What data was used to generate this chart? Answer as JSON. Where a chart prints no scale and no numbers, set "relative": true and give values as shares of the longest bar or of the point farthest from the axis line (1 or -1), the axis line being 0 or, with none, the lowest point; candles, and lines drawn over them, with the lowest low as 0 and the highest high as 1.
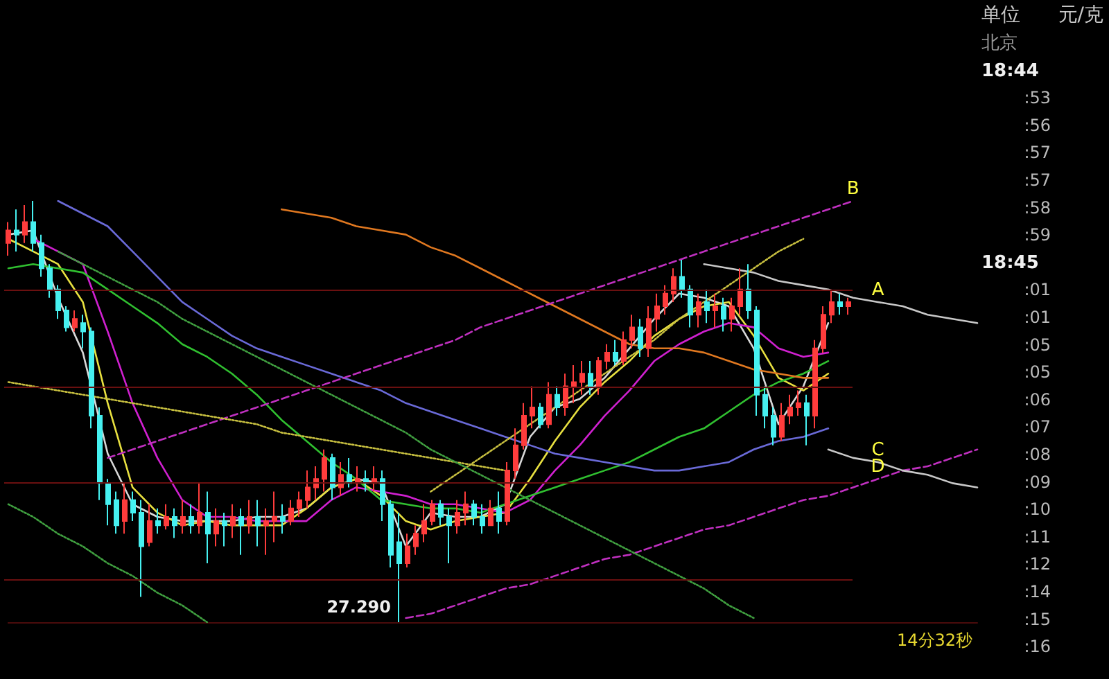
{
  "chart_data": [
    {
      "type": "candlestick",
      "relative": true,
      "ref_lines": [
        {
          "axis": "y",
          "value": 0.79,
          "color": "#6a1010"
        },
        {
          "axis": "y",
          "value": 0.56,
          "color": "#6a1010"
        },
        {
          "axis": "y",
          "value": 0.33,
          "color": "#6a1010"
        },
        {
          "axis": "y",
          "value": 0.1,
          "color": "#6a1010"
        }
      ],
      "categories": [
        null,
        null,
        null,
        null,
        null,
        null,
        null,
        null,
        null,
        null,
        null,
        null,
        null,
        null,
        null,
        null,
        null,
        null,
        null,
        null,
        null,
        null,
        null,
        null,
        null,
        null,
        null,
        null,
        null,
        null,
        null,
        null,
        null,
        null,
        null,
        null,
        null,
        null,
        null,
        null,
        null,
        null,
        null,
        null,
        null,
        null,
        null,
        null,
        null,
        null,
        null,
        null,
        null,
        null,
        null,
        null,
        null,
        null,
        null,
        null,
        null,
        null,
        null,
        null,
        null,
        null,
        null,
        null,
        null,
        null,
        null,
        null,
        null,
        null,
        null,
        null,
        null,
        null,
        null,
        null,
        null,
        null,
        null,
        null,
        null,
        null,
        null,
        null,
        null,
        null,
        null,
        null,
        null,
        null,
        null,
        null,
        null,
        null,
        null,
        null,
        null,
        null
      ],
      "annotations": [
        "14分32秒",
        "27.290",
        "单位",
        "元/克",
        "北京",
        "18:44",
        ":53",
        ":56",
        ":57",
        ":57",
        ":58",
        ":59",
        "18:45",
        ":01",
        ":01",
        ":05",
        ":05",
        ":06",
        ":07",
        ":08",
        ":09",
        ":10",
        ":11",
        ":12",
        ":14",
        ":15",
        ":16"
      ],
      "ohlc": [
        [
          0.9,
          0.95,
          0.87,
          0.93
        ],
        [
          0.93,
          0.98,
          0.88,
          0.92
        ],
        [
          0.92,
          0.99,
          0.9,
          0.95
        ],
        [
          0.95,
          1,
          0.88,
          0.9
        ],
        [
          0.9,
          0.92,
          0.82,
          0.84
        ],
        [
          0.84,
          0.85,
          0.77,
          0.79
        ],
        [
          0.79,
          0.8,
          0.72,
          0.74
        ],
        [
          0.74,
          0.75,
          0.69,
          0.7
        ],
        [
          0.7,
          0.74,
          0.69,
          0.72
        ],
        [
          0.71,
          0.73,
          0.65,
          0.69
        ],
        [
          0.69,
          0.7,
          0.46,
          0.49
        ],
        [
          0.49,
          0.51,
          0.29,
          0.33
        ],
        [
          0.33,
          0.34,
          0.23,
          0.28
        ],
        [
          0.29,
          0.31,
          0.21,
          0.23
        ],
        [
          0.24,
          0.33,
          0.21,
          0.29
        ],
        [
          0.29,
          0.31,
          0.24,
          0.26
        ],
        [
          0.26,
          0.29,
          0.06,
          0.18
        ],
        [
          0.19,
          0.28,
          0.18,
          0.24
        ],
        [
          0.24,
          0.27,
          0.21,
          0.23
        ],
        [
          0.23,
          0.28,
          0.22,
          0.25
        ],
        [
          0.25,
          0.27,
          0.2,
          0.23
        ],
        [
          0.23,
          0.29,
          0.21,
          0.25
        ],
        [
          0.25,
          0.28,
          0.21,
          0.23
        ],
        [
          0.23,
          0.33,
          0.21,
          0.26
        ],
        [
          0.26,
          0.31,
          0.14,
          0.21
        ],
        [
          0.21,
          0.27,
          0.18,
          0.24
        ],
        [
          0.24,
          0.26,
          0.18,
          0.23
        ],
        [
          0.23,
          0.28,
          0.2,
          0.25
        ],
        [
          0.25,
          0.27,
          0.16,
          0.23
        ],
        [
          0.23,
          0.29,
          0.21,
          0.25
        ],
        [
          0.25,
          0.29,
          0.18,
          0.23
        ],
        [
          0.23,
          0.27,
          0.16,
          0.24
        ],
        [
          0.24,
          0.31,
          0.19,
          0.25
        ],
        [
          0.25,
          0.28,
          0.21,
          0.24
        ],
        [
          0.24,
          0.29,
          0.23,
          0.27
        ],
        [
          0.27,
          0.31,
          0.25,
          0.29
        ],
        [
          0.29,
          0.36,
          0.27,
          0.32
        ],
        [
          0.32,
          0.37,
          0.29,
          0.34
        ],
        [
          0.34,
          0.41,
          0.31,
          0.39
        ],
        [
          0.39,
          0.4,
          0.29,
          0.32
        ],
        [
          0.32,
          0.38,
          0.3,
          0.35
        ],
        [
          0.35,
          0.39,
          0.32,
          0.33
        ],
        [
          0.33,
          0.37,
          0.31,
          0.34
        ],
        [
          0.34,
          0.36,
          0.31,
          0.33
        ],
        [
          0.33,
          0.37,
          0.31,
          0.34
        ],
        [
          0.34,
          0.36,
          0.24,
          0.28
        ],
        [
          0.28,
          0.29,
          0.13,
          0.16
        ],
        [
          0.19,
          0.26,
          0,
          0.14
        ],
        [
          0.14,
          0.21,
          0.13,
          0.18
        ],
        [
          0.18,
          0.23,
          0.16,
          0.21
        ],
        [
          0.21,
          0.28,
          0.19,
          0.24
        ],
        [
          0.24,
          0.29,
          0.23,
          0.28
        ],
        [
          0.28,
          0.29,
          0.23,
          0.25
        ],
        [
          0.25,
          0.27,
          0.14,
          0.23
        ],
        [
          0.23,
          0.29,
          0.21,
          0.26
        ],
        [
          0.26,
          0.31,
          0.23,
          0.28
        ],
        [
          0.28,
          0.29,
          0.23,
          0.25
        ],
        [
          0.25,
          0.28,
          0.21,
          0.23
        ],
        [
          0.23,
          0.29,
          0.23,
          0.27
        ],
        [
          0.27,
          0.31,
          0.21,
          0.24
        ],
        [
          0.24,
          0.38,
          0.23,
          0.36
        ],
        [
          0.36,
          0.46,
          0.34,
          0.42
        ],
        [
          0.42,
          0.52,
          0.41,
          0.49
        ],
        [
          0.49,
          0.56,
          0.46,
          0.51
        ],
        [
          0.51,
          0.52,
          0.46,
          0.47
        ],
        [
          0.47,
          0.57,
          0.46,
          0.54
        ],
        [
          0.54,
          0.56,
          0.49,
          0.51
        ],
        [
          0.51,
          0.59,
          0.49,
          0.56
        ],
        [
          0.56,
          0.61,
          0.52,
          0.57
        ],
        [
          0.57,
          0.62,
          0.54,
          0.59
        ],
        [
          0.59,
          0.62,
          0.54,
          0.56
        ],
        [
          0.56,
          0.63,
          0.54,
          0.62
        ],
        [
          0.62,
          0.66,
          0.6,
          0.64
        ],
        [
          0.64,
          0.67,
          0.61,
          0.62
        ],
        [
          0.62,
          0.69,
          0.61,
          0.67
        ],
        [
          0.67,
          0.73,
          0.65,
          0.7
        ],
        [
          0.7,
          0.72,
          0.63,
          0.65
        ],
        [
          0.65,
          0.75,
          0.63,
          0.72
        ],
        [
          0.72,
          0.78,
          0.69,
          0.75
        ],
        [
          0.75,
          0.8,
          0.73,
          0.78
        ],
        [
          0.78,
          0.84,
          0.76,
          0.82
        ],
        [
          0.82,
          0.86,
          0.77,
          0.79
        ],
        [
          0.79,
          0.8,
          0.7,
          0.73
        ],
        [
          0.73,
          0.78,
          0.7,
          0.76
        ],
        [
          0.76,
          0.79,
          0.71,
          0.74
        ],
        [
          0.74,
          0.78,
          0.7,
          0.75
        ],
        [
          0.75,
          0.77,
          0.69,
          0.72
        ],
        [
          0.72,
          0.77,
          0.69,
          0.75
        ],
        [
          0.75,
          0.84,
          0.73,
          0.79
        ],
        [
          0.79,
          0.85,
          0.72,
          0.74
        ],
        [
          0.74,
          0.75,
          0.49,
          0.54
        ],
        [
          0.54,
          0.56,
          0.46,
          0.49
        ],
        [
          0.49,
          0.51,
          0.42,
          0.44
        ],
        [
          0.44,
          0.52,
          0.43,
          0.49
        ],
        [
          0.49,
          0.54,
          0.47,
          0.51
        ],
        [
          0.51,
          0.55,
          0.49,
          0.52
        ],
        [
          0.52,
          0.54,
          0.42,
          0.49
        ],
        [
          0.49,
          0.67,
          0.46,
          0.65
        ],
        [
          0.65,
          0.75,
          0.64,
          0.73
        ],
        [
          0.73,
          0.79,
          0.71,
          0.76
        ],
        [
          0.76,
          0.78,
          0.73,
          0.75
        ],
        [
          0.75,
          0.77,
          0.73,
          0.76
        ]
      ]
    },
    {
      "type": "line",
      "relative": true,
      "categories": [
        null,
        null,
        null,
        null,
        null,
        null,
        null,
        null,
        null,
        null,
        null,
        null,
        null,
        null,
        null,
        null,
        null,
        null,
        null,
        null,
        null,
        null,
        null,
        null,
        null,
        null,
        null,
        null,
        null,
        null,
        null,
        null,
        null,
        null
      ],
      "series": [
        {
          "color": "#d8d8d8",
          "values": [
            0.92,
            0.93,
            0.77,
            0.64,
            0.4,
            0.28,
            0.25,
            0.24,
            0.24,
            0.24,
            0.25,
            0.25,
            0.27,
            0.32,
            0.34,
            0.33,
            0.18,
            0.26,
            0.25,
            0.25,
            0.28,
            0.44,
            0.51,
            0.53,
            0.58,
            0.65,
            0.72,
            0.78,
            0.77,
            0.75,
            0.65,
            0.47,
            0.56,
            0.71
          ]
        },
        {
          "color": "#e8e040",
          "values": [
            0.91,
            0.88,
            0.85,
            0.76,
            0.52,
            0.32,
            0.26,
            0.23,
            0.24,
            0.23,
            0.23,
            0.23,
            0.27,
            0.32,
            0.34,
            0.3,
            0.24,
            0.22,
            0.24,
            0.25,
            0.26,
            0.34,
            0.43,
            0.51,
            0.57,
            0.62,
            0.68,
            0.72,
            0.75,
            0.76,
            0.68,
            0.58,
            0.55,
            0.59
          ]
        },
        {
          "color": "#d020d0",
          "values": [
            null,
            0.91,
            0.88,
            0.85,
            0.69,
            0.52,
            0.39,
            0.29,
            0.25,
            0.25,
            0.24,
            0.24,
            0.24,
            0.29,
            0.32,
            0.31,
            0.3,
            0.28,
            0.28,
            0.27,
            0.26,
            0.29,
            0.36,
            0.42,
            0.49,
            0.55,
            0.62,
            0.66,
            0.69,
            0.71,
            0.7,
            0.65,
            0.63,
            0.64
          ]
        },
        {
          "color": "#30c030",
          "values": [
            0.84,
            0.85,
            0.84,
            0.83,
            0.79,
            0.75,
            0.71,
            0.66,
            0.63,
            0.59,
            0.54,
            0.48,
            0.43,
            0.38,
            0.34,
            0.29,
            0.28,
            0.27,
            0.27,
            0.26,
            0.28,
            0.3,
            0.32,
            0.34,
            0.36,
            0.38,
            0.41,
            0.44,
            0.46,
            0.5,
            0.54,
            0.57,
            0.59,
            0.62
          ]
        },
        {
          "color": "#6a6ad8",
          "values": [
            null,
            null,
            1,
            0.97,
            0.94,
            0.88,
            0.82,
            0.76,
            0.72,
            0.68,
            0.65,
            0.63,
            0.61,
            0.59,
            0.57,
            0.55,
            0.52,
            0.5,
            0.48,
            0.46,
            0.44,
            0.42,
            0.4,
            0.39,
            0.38,
            0.37,
            0.36,
            0.36,
            0.37,
            0.38,
            0.41,
            0.43,
            0.44,
            0.46
          ]
        },
        {
          "color": "#e07820",
          "values": [
            null,
            null,
            null,
            null,
            null,
            null,
            null,
            null,
            null,
            null,
            null,
            0.98,
            0.97,
            0.96,
            0.94,
            0.93,
            0.92,
            0.89,
            0.87,
            0.84,
            0.81,
            0.78,
            0.75,
            0.72,
            0.69,
            0.66,
            0.65,
            0.65,
            0.64,
            0.62,
            0.6,
            0.59,
            0.58,
            0.58
          ]
        }
      ]
    },
    {
      "type": "line",
      "relative": true,
      "categories": [
        null,
        null,
        null,
        null,
        null,
        null,
        null,
        null,
        null,
        null,
        null,
        null,
        null,
        null,
        null,
        null,
        null,
        null,
        null,
        null,
        null,
        null,
        null,
        null,
        null,
        null,
        null,
        null,
        null,
        null,
        null,
        null,
        null,
        null,
        null,
        null,
        null,
        null,
        null,
        null
      ],
      "series": [
        {
          "name": "B",
          "color": "#c030c0",
          "line_style": "dashed",
          "values": [
            null,
            null,
            null,
            null,
            0.39,
            0.41,
            0.43,
            0.45,
            0.47,
            0.49,
            0.51,
            0.53,
            0.55,
            0.57,
            0.59,
            0.61,
            0.63,
            0.65,
            0.67,
            0.7,
            0.72,
            0.74,
            0.76,
            0.78,
            0.8,
            0.82,
            0.84,
            0.86,
            0.88,
            0.9,
            0.92,
            0.94,
            0.96,
            0.98,
            1,
            null,
            null,
            null,
            null,
            null
          ]
        },
        {
          "name": "D",
          "color": "#c030c0",
          "line_style": "dashed",
          "values": [
            null,
            null,
            null,
            null,
            null,
            null,
            null,
            null,
            null,
            null,
            null,
            null,
            null,
            null,
            null,
            null,
            0.01,
            0.02,
            0.04,
            0.06,
            0.08,
            0.09,
            0.11,
            0.13,
            0.15,
            0.16,
            0.18,
            0.2,
            0.22,
            0.23,
            0.25,
            0.27,
            0.29,
            0.3,
            0.32,
            0.34,
            0.36,
            0.37,
            0.39,
            0.41
          ]
        },
        {
          "name": "A",
          "color": "#c8c8c8",
          "values": [
            null,
            null,
            null,
            null,
            null,
            null,
            null,
            null,
            null,
            null,
            null,
            null,
            null,
            null,
            null,
            null,
            null,
            null,
            null,
            null,
            null,
            null,
            null,
            null,
            null,
            null,
            null,
            null,
            0.85,
            0.84,
            0.83,
            0.81,
            0.8,
            0.79,
            0.77,
            0.76,
            0.75,
            0.73,
            0.72,
            0.71
          ]
        },
        {
          "name": "C",
          "color": "#c8c8c8",
          "values": [
            null,
            null,
            null,
            null,
            null,
            null,
            null,
            null,
            null,
            null,
            null,
            null,
            null,
            null,
            null,
            null,
            null,
            null,
            null,
            null,
            null,
            null,
            null,
            null,
            null,
            null,
            null,
            null,
            null,
            null,
            null,
            null,
            null,
            0.41,
            0.39,
            0.38,
            0.36,
            0.35,
            0.33,
            0.32
          ]
        },
        {
          "color": "#c8c040",
          "line_style": "dotted",
          "values": [
            null,
            null,
            null,
            null,
            null,
            null,
            null,
            null,
            null,
            null,
            null,
            null,
            null,
            null,
            null,
            null,
            null,
            0.31,
            0.35,
            0.39,
            0.43,
            0.47,
            0.51,
            0.55,
            0.59,
            0.63,
            0.67,
            0.72,
            0.76,
            0.8,
            0.84,
            0.88,
            0.91,
            null,
            null,
            null,
            null,
            null,
            null,
            null
          ]
        },
        {
          "color": "#c8c040",
          "line_style": "dotted",
          "values": [
            0.57,
            0.56,
            0.55,
            0.54,
            0.53,
            0.52,
            0.51,
            0.5,
            0.49,
            0.48,
            0.47,
            0.45,
            0.44,
            0.43,
            0.42,
            0.41,
            0.4,
            0.39,
            0.38,
            0.37,
            0.36,
            null,
            null,
            null,
            null,
            null,
            null,
            null,
            null,
            null,
            null,
            null,
            null,
            null,
            null,
            null,
            null,
            null,
            null,
            null
          ]
        },
        {
          "color": "#40a040",
          "line_style": "dotted",
          "values": [
            null,
            null,
            0.88,
            0.85,
            0.82,
            0.79,
            0.76,
            0.72,
            0.69,
            0.66,
            0.63,
            0.6,
            0.57,
            0.54,
            0.51,
            0.48,
            0.45,
            0.41,
            0.38,
            0.35,
            0.32,
            0.29,
            0.26,
            0.23,
            0.2,
            0.17,
            0.14,
            0.11,
            0.08,
            0.04,
            0.01,
            null,
            null,
            null,
            null,
            null,
            null,
            null,
            null,
            null
          ]
        },
        {
          "color": "#40a040",
          "line_style": "dotted",
          "values": [
            0.28,
            0.25,
            0.21,
            0.18,
            0.14,
            0.11,
            0.07,
            0.04,
            0,
            null,
            null,
            null,
            null,
            null,
            null,
            null,
            null,
            null,
            null,
            null,
            null,
            null,
            null,
            null,
            null,
            null,
            null,
            null,
            null,
            null,
            null,
            null,
            null,
            null,
            null,
            null,
            null,
            null,
            null,
            null
          ]
        }
      ]
    }
  ]
}
